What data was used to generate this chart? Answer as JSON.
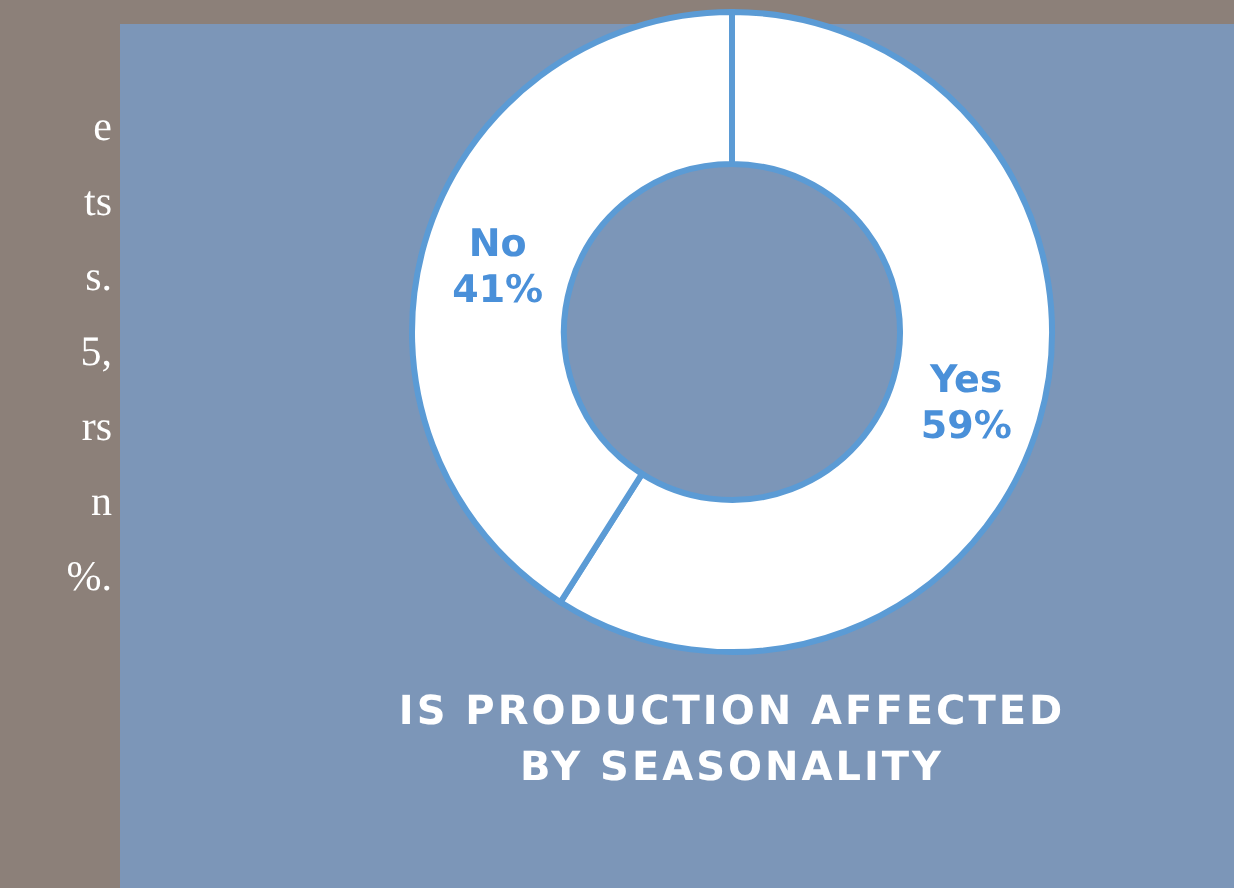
{
  "chart_data": {
    "type": "donut",
    "title": "IS PRODUCTION AFFECTED BY SEASONALITY",
    "categories": [
      "Yes",
      "No"
    ],
    "values": [
      59,
      41
    ],
    "colors": [
      "#ffffff",
      "#ffffff"
    ],
    "value_labels": [
      "59%",
      "41%"
    ],
    "annotations": [
      "e",
      "ts",
      "s.",
      "5,",
      "rs",
      "n",
      "%."
    ]
  }
}
